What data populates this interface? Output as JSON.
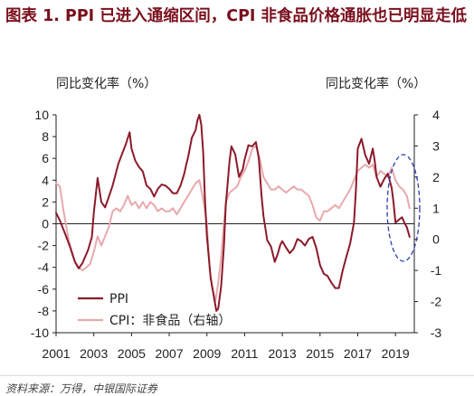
{
  "header": {
    "title": "图表 1. PPI 已进入通缩区间，CPI 非食品价格通胀也已明显走低"
  },
  "source": "资料来源：万得，中银国际证券",
  "chart_data": {
    "type": "line",
    "y_left_label": "同比变化率（%）",
    "y_right_label": "同比变化率（%）",
    "y_left_range": [
      -10,
      10
    ],
    "y_left_ticks": [
      10,
      8,
      6,
      4,
      2,
      0,
      -2,
      -4,
      -6,
      -8,
      -10
    ],
    "y_right_range": [
      -3,
      4
    ],
    "y_right_ticks": [
      4,
      3,
      2,
      1,
      0,
      -1,
      -2,
      -3
    ],
    "x_range": [
      2001,
      2020
    ],
    "x_ticks": [
      2001,
      2003,
      2005,
      2007,
      2009,
      2011,
      2013,
      2015,
      2017,
      2019
    ],
    "grid": false,
    "legend_position": "bottom-left",
    "series": [
      {
        "name": "PPI",
        "axis": "left",
        "color": "#8b1a2b",
        "points": [
          [
            2001.0,
            1.0
          ],
          [
            2001.2,
            0.3
          ],
          [
            2001.5,
            -1.0
          ],
          [
            2001.8,
            -2.4
          ],
          [
            2002.0,
            -3.5
          ],
          [
            2002.2,
            -4.1
          ],
          [
            2002.4,
            -3.6
          ],
          [
            2002.7,
            -2.4
          ],
          [
            2002.9,
            -1.2
          ],
          [
            2003.0,
            1.0
          ],
          [
            2003.2,
            4.2
          ],
          [
            2003.4,
            2.0
          ],
          [
            2003.6,
            1.5
          ],
          [
            2003.8,
            2.5
          ],
          [
            2004.0,
            3.5
          ],
          [
            2004.3,
            5.5
          ],
          [
            2004.5,
            6.4
          ],
          [
            2004.7,
            7.3
          ],
          [
            2004.9,
            8.4
          ],
          [
            2005.0,
            6.9
          ],
          [
            2005.2,
            5.8
          ],
          [
            2005.4,
            5.2
          ],
          [
            2005.6,
            4.8
          ],
          [
            2005.8,
            3.5
          ],
          [
            2006.0,
            3.2
          ],
          [
            2006.2,
            2.5
          ],
          [
            2006.4,
            3.2
          ],
          [
            2006.6,
            3.6
          ],
          [
            2006.8,
            3.5
          ],
          [
            2007.0,
            3.2
          ],
          [
            2007.2,
            2.8
          ],
          [
            2007.4,
            2.8
          ],
          [
            2007.6,
            3.5
          ],
          [
            2007.8,
            4.6
          ],
          [
            2007.9,
            5.4
          ],
          [
            2008.0,
            6.1
          ],
          [
            2008.2,
            7.9
          ],
          [
            2008.4,
            8.6
          ],
          [
            2008.5,
            9.5
          ],
          [
            2008.6,
            10.0
          ],
          [
            2008.7,
            9.1
          ],
          [
            2008.8,
            6.6
          ],
          [
            2008.9,
            2.0
          ],
          [
            2009.0,
            -1.1
          ],
          [
            2009.2,
            -5.0
          ],
          [
            2009.4,
            -7.0
          ],
          [
            2009.5,
            -8.0
          ],
          [
            2009.6,
            -7.8
          ],
          [
            2009.75,
            -5.8
          ],
          [
            2009.9,
            -2.1
          ],
          [
            2010.0,
            1.7
          ],
          [
            2010.2,
            5.7
          ],
          [
            2010.3,
            7.1
          ],
          [
            2010.5,
            6.4
          ],
          [
            2010.7,
            4.3
          ],
          [
            2010.9,
            5.0
          ],
          [
            2011.0,
            5.9
          ],
          [
            2011.2,
            7.2
          ],
          [
            2011.4,
            7.1
          ],
          [
            2011.6,
            7.5
          ],
          [
            2011.75,
            6.0
          ],
          [
            2011.9,
            2.5
          ],
          [
            2012.0,
            0.7
          ],
          [
            2012.2,
            -1.5
          ],
          [
            2012.4,
            -2.1
          ],
          [
            2012.6,
            -3.5
          ],
          [
            2012.75,
            -2.8
          ],
          [
            2012.9,
            -1.9
          ],
          [
            2013.0,
            -1.6
          ],
          [
            2013.2,
            -2.2
          ],
          [
            2013.4,
            -2.7
          ],
          [
            2013.6,
            -2.3
          ],
          [
            2013.8,
            -1.4
          ],
          [
            2014.0,
            -1.6
          ],
          [
            2014.2,
            -2.0
          ],
          [
            2014.4,
            -1.4
          ],
          [
            2014.6,
            -1.2
          ],
          [
            2014.8,
            -2.2
          ],
          [
            2015.0,
            -3.8
          ],
          [
            2015.2,
            -4.6
          ],
          [
            2015.4,
            -4.8
          ],
          [
            2015.6,
            -5.4
          ],
          [
            2015.8,
            -5.9
          ],
          [
            2016.0,
            -5.9
          ],
          [
            2016.2,
            -4.3
          ],
          [
            2016.4,
            -3.0
          ],
          [
            2016.6,
            -1.8
          ],
          [
            2016.8,
            0.1
          ],
          [
            2016.9,
            3.0
          ],
          [
            2017.0,
            6.9
          ],
          [
            2017.2,
            7.8
          ],
          [
            2017.4,
            6.3
          ],
          [
            2017.6,
            5.5
          ],
          [
            2017.8,
            6.9
          ],
          [
            2017.9,
            5.8
          ],
          [
            2018.0,
            4.3
          ],
          [
            2018.2,
            3.4
          ],
          [
            2018.4,
            4.1
          ],
          [
            2018.6,
            4.6
          ],
          [
            2018.8,
            3.3
          ],
          [
            2018.9,
            1.9
          ],
          [
            2019.0,
            0.1
          ],
          [
            2019.2,
            0.4
          ],
          [
            2019.35,
            0.6
          ],
          [
            2019.5,
            0.0
          ],
          [
            2019.6,
            -0.3
          ],
          [
            2019.75,
            -1.2
          ]
        ]
      },
      {
        "name": "CPI：非食品（右轴）",
        "axis": "right",
        "color": "#e8a9ad",
        "points": [
          [
            2001.0,
            1.8
          ],
          [
            2001.2,
            1.7
          ],
          [
            2001.4,
            0.9
          ],
          [
            2001.6,
            0.2
          ],
          [
            2001.8,
            -0.4
          ],
          [
            2002.0,
            -0.7
          ],
          [
            2002.2,
            -0.9
          ],
          [
            2002.4,
            -1.0
          ],
          [
            2002.6,
            -0.9
          ],
          [
            2002.8,
            -0.8
          ],
          [
            2003.0,
            -0.4
          ],
          [
            2003.2,
            0.1
          ],
          [
            2003.4,
            -0.2
          ],
          [
            2003.6,
            0.1
          ],
          [
            2003.8,
            0.4
          ],
          [
            2004.0,
            0.9
          ],
          [
            2004.2,
            1.0
          ],
          [
            2004.4,
            0.9
          ],
          [
            2004.6,
            1.1
          ],
          [
            2004.8,
            1.4
          ],
          [
            2005.0,
            1.1
          ],
          [
            2005.2,
            1.2
          ],
          [
            2005.4,
            1.0
          ],
          [
            2005.6,
            1.2
          ],
          [
            2005.8,
            1.0
          ],
          [
            2006.0,
            1.2
          ],
          [
            2006.2,
            1.1
          ],
          [
            2006.4,
            0.9
          ],
          [
            2006.6,
            1.0
          ],
          [
            2006.8,
            0.9
          ],
          [
            2007.0,
            0.9
          ],
          [
            2007.2,
            1.0
          ],
          [
            2007.4,
            0.8
          ],
          [
            2007.6,
            1.0
          ],
          [
            2007.8,
            1.2
          ],
          [
            2008.0,
            1.4
          ],
          [
            2008.2,
            1.6
          ],
          [
            2008.4,
            1.8
          ],
          [
            2008.6,
            1.9
          ],
          [
            2008.8,
            1.3
          ],
          [
            2008.9,
            0.9
          ],
          [
            2009.0,
            0.5
          ],
          [
            2009.15,
            -1.0
          ],
          [
            2009.3,
            -1.6
          ],
          [
            2009.45,
            -2.0
          ],
          [
            2009.6,
            -1.4
          ],
          [
            2009.75,
            -0.6
          ],
          [
            2009.9,
            0.5
          ],
          [
            2010.0,
            1.2
          ],
          [
            2010.2,
            1.5
          ],
          [
            2010.4,
            1.6
          ],
          [
            2010.6,
            1.7
          ],
          [
            2010.8,
            2.0
          ],
          [
            2011.0,
            2.2
          ],
          [
            2011.2,
            2.5
          ],
          [
            2011.4,
            2.9
          ],
          [
            2011.6,
            3.0
          ],
          [
            2011.8,
            2.6
          ],
          [
            2012.0,
            2.0
          ],
          [
            2012.2,
            1.8
          ],
          [
            2012.4,
            1.6
          ],
          [
            2012.6,
            1.6
          ],
          [
            2012.8,
            1.7
          ],
          [
            2013.0,
            1.6
          ],
          [
            2013.2,
            1.5
          ],
          [
            2013.4,
            1.6
          ],
          [
            2013.6,
            1.7
          ],
          [
            2013.8,
            1.6
          ],
          [
            2014.0,
            1.6
          ],
          [
            2014.2,
            1.5
          ],
          [
            2014.4,
            1.4
          ],
          [
            2014.6,
            1.1
          ],
          [
            2014.8,
            0.7
          ],
          [
            2015.0,
            0.6
          ],
          [
            2015.2,
            0.9
          ],
          [
            2015.4,
            0.9
          ],
          [
            2015.6,
            1.0
          ],
          [
            2015.8,
            1.1
          ],
          [
            2016.0,
            1.0
          ],
          [
            2016.2,
            1.2
          ],
          [
            2016.4,
            1.4
          ],
          [
            2016.6,
            1.6
          ],
          [
            2016.8,
            1.9
          ],
          [
            2017.0,
            2.2
          ],
          [
            2017.2,
            2.3
          ],
          [
            2017.4,
            2.4
          ],
          [
            2017.6,
            2.3
          ],
          [
            2017.8,
            2.4
          ],
          [
            2018.0,
            2.0
          ],
          [
            2018.2,
            2.2
          ],
          [
            2018.4,
            2.1
          ],
          [
            2018.6,
            2.0
          ],
          [
            2018.8,
            2.3
          ],
          [
            2019.0,
            1.9
          ],
          [
            2019.2,
            1.7
          ],
          [
            2019.4,
            1.6
          ],
          [
            2019.6,
            1.4
          ],
          [
            2019.75,
            1.0
          ]
        ]
      }
    ]
  }
}
